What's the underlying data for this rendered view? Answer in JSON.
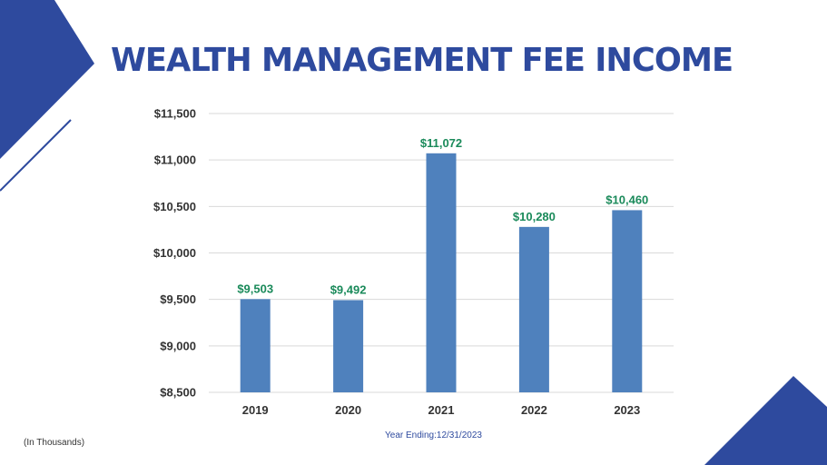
{
  "colors": {
    "accent": "#2e4a9e",
    "bar": "#4f81bd",
    "data_label": "#1a8a5a",
    "grid": "#d9d9d9",
    "tick": "#333333"
  },
  "footnote": "(In Thousands)",
  "chart_data": {
    "type": "bar",
    "title": "WEALTH MANAGEMENT FEE INCOME",
    "xlabel": "Year Ending:12/31/2023",
    "ylabel": "",
    "categories": [
      "2019",
      "2020",
      "2021",
      "2022",
      "2023"
    ],
    "values": [
      9503,
      9492,
      11072,
      10280,
      10460
    ],
    "data_labels": [
      "$9,503",
      "$9,492",
      "$11,072",
      "$10,280",
      "$10,460"
    ],
    "ylim": [
      8500,
      11500
    ],
    "yticks": [
      8500,
      9000,
      9500,
      10000,
      10500,
      11000,
      11500
    ],
    "ytick_labels": [
      "$8,500",
      "$9,000",
      "$9,500",
      "$10,000",
      "$10,500",
      "$11,000",
      "$11,500"
    ],
    "grid": true,
    "legend": "none"
  }
}
